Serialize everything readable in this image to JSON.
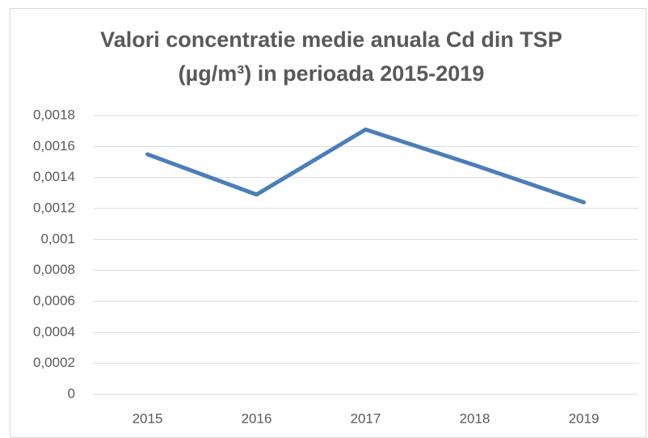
{
  "chart_data": {
    "type": "line",
    "title": "Valori concentratie medie anuala Cd din TSP (µg/m³) in perioada 2015-2019",
    "categories": [
      "2015",
      "2016",
      "2017",
      "2018",
      "2019"
    ],
    "series": [
      {
        "name": "Cd",
        "color": "#4a7ebb",
        "values": [
          0.00155,
          0.00129,
          0.00171,
          0.00148,
          0.00124
        ]
      }
    ],
    "ylim": [
      0,
      0.0018
    ],
    "yticks": [
      0,
      {
        "value": 0.0002,
        "label": "0,0002"
      },
      {
        "value": 0.0004,
        "label": "0,0004"
      },
      {
        "value": 0.0006,
        "label": "0,0006"
      },
      {
        "value": 0.0008,
        "label": "0,0008"
      },
      {
        "value": 0.001,
        "label": "0,001"
      },
      {
        "value": 0.0012,
        "label": "0,0012"
      },
      {
        "value": 0.0014,
        "label": "0,0014"
      },
      {
        "value": 0.0016,
        "label": "0,0016"
      },
      {
        "value": 0.0018,
        "label": "0,0018"
      }
    ],
    "grid": true
  }
}
